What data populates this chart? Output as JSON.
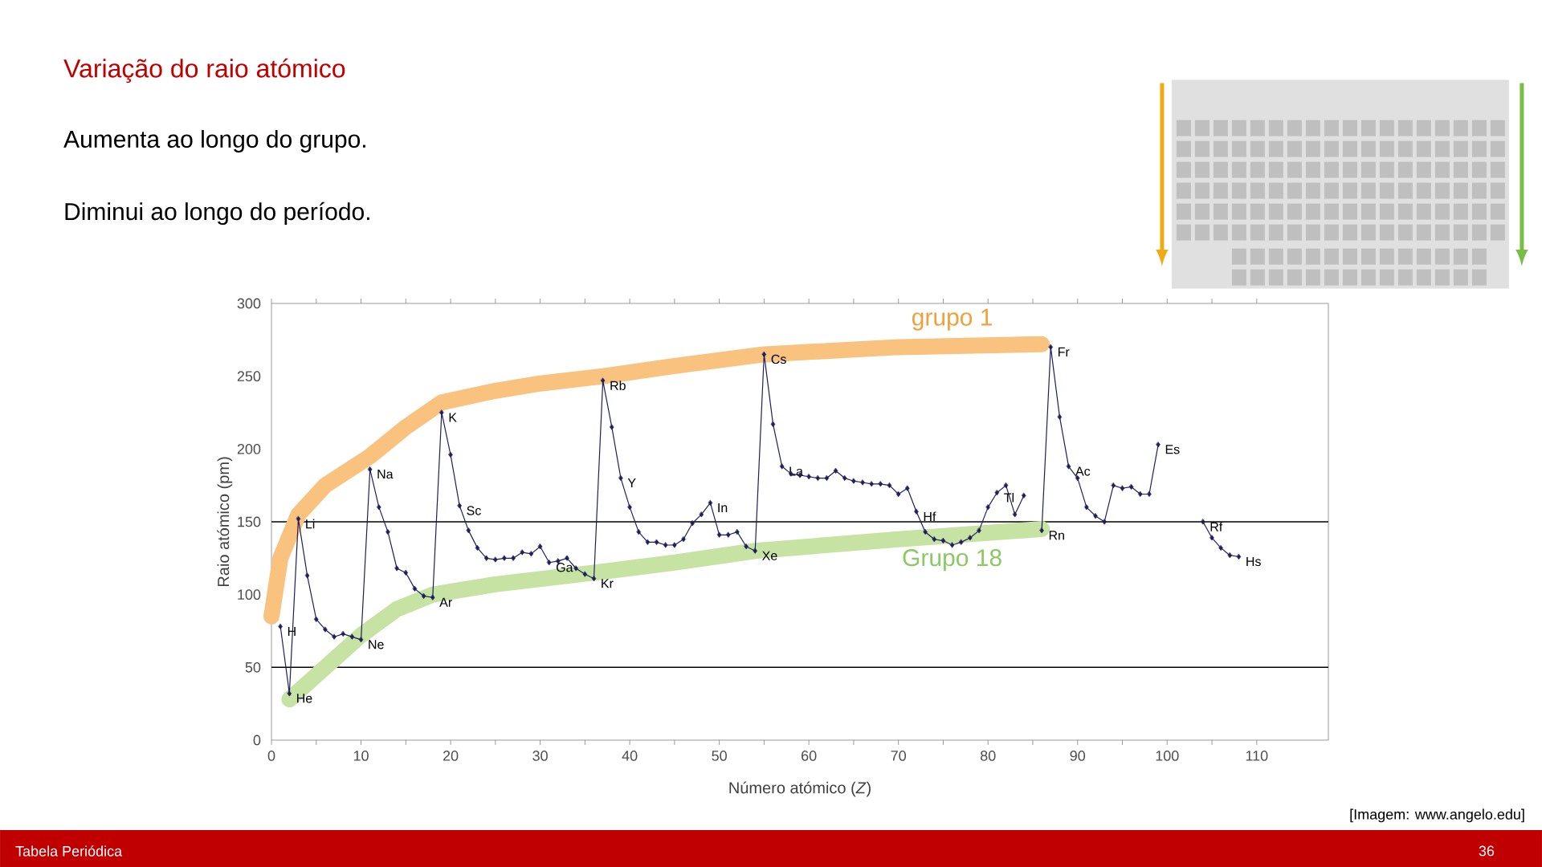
{
  "chart_data": {
    "type": "line",
    "title": "Variação do raio atómico",
    "xlabel": "Número atómico (*Z*)",
    "ylabel": "Raio atómico (pm)",
    "x": [
      1,
      2,
      3,
      4,
      5,
      6,
      7,
      8,
      9,
      10,
      11,
      12,
      13,
      14,
      15,
      16,
      17,
      18,
      19,
      20,
      21,
      22,
      23,
      24,
      25,
      26,
      27,
      28,
      29,
      30,
      31,
      32,
      33,
      34,
      35,
      36,
      37,
      38,
      39,
      40,
      41,
      42,
      43,
      44,
      45,
      46,
      47,
      48,
      49,
      50,
      51,
      52,
      53,
      54,
      55,
      56,
      57,
      58,
      59,
      60,
      61,
      62,
      63,
      64,
      65,
      66,
      67,
      68,
      69,
      70,
      71,
      72,
      73,
      74,
      75,
      76,
      77,
      78,
      79,
      80,
      81,
      82,
      83,
      84,
      85,
      86,
      87,
      88,
      89,
      90,
      91,
      92,
      93,
      94,
      95,
      96,
      97,
      98,
      99,
      100,
      101,
      102,
      103,
      104,
      105,
      106,
      107,
      108
    ],
    "series": [
      {
        "color": "#1f1f5c",
        "marker": "diamond",
        "values": [
          78,
          32,
          152,
          113,
          83,
          76,
          71,
          73,
          71,
          69,
          186,
          160,
          143,
          118,
          115,
          104,
          99,
          98,
          225,
          196,
          161,
          144,
          132,
          125,
          124,
          125,
          125,
          129,
          128,
          133,
          122,
          123,
          125,
          118,
          114,
          111,
          247,
          215,
          180,
          160,
          143,
          136,
          136,
          134,
          134,
          138,
          149,
          155,
          163,
          141,
          141,
          143,
          133,
          130,
          265,
          217,
          188,
          183,
          182,
          181,
          180,
          180,
          185,
          180,
          178,
          177,
          176,
          176,
          175,
          169,
          173,
          157,
          143,
          138,
          137,
          134,
          136,
          139,
          144,
          160,
          170,
          175,
          155,
          168,
          null,
          144,
          270,
          222,
          188,
          180,
          160,
          154,
          150,
          175,
          173,
          174,
          169,
          169,
          203,
          null,
          null,
          null,
          null,
          150,
          139,
          132,
          127,
          126
        ]
      },
      {
        "name": "grupo 1",
        "color": "#f9c27f",
        "marker": "none",
        "x": [
          0,
          1,
          3,
          6,
          11,
          15,
          19,
          25,
          30,
          37,
          45,
          55,
          70,
          86
        ],
        "values": [
          85,
          125,
          155,
          175,
          195,
          215,
          232,
          240,
          245,
          250,
          257,
          265,
          270,
          272
        ]
      },
      {
        "name": "Grupo 18",
        "color": "#c6e3a4",
        "marker": "none",
        "x": [
          2,
          6,
          10,
          14,
          18,
          25,
          36,
          45,
          54,
          70,
          86
        ],
        "values": [
          28,
          50,
          72,
          90,
          100,
          107,
          115,
          122,
          130,
          138,
          145
        ]
      }
    ],
    "xlim": [
      0,
      118
    ],
    "ylim": [
      0,
      300
    ],
    "xticks": [
      0,
      10,
      20,
      30,
      40,
      50,
      60,
      70,
      80,
      90,
      100,
      110
    ],
    "yticks": [
      0,
      50,
      100,
      150,
      200,
      250,
      300
    ],
    "ref_lines": [
      {
        "axis": "y",
        "value": 50
      },
      {
        "axis": "y",
        "value": 150
      }
    ],
    "annotations": [
      "Aumenta ao longo do grupo.",
      "Diminui ao longo do período.",
      "[Imagem: www.angelo.edu]",
      "Tabela Periódica",
      "36",
      {
        "text": "H",
        "x": 1,
        "y": 78
      },
      {
        "text": "He",
        "x": 2,
        "y": 32
      },
      {
        "text": "Li",
        "x": 3,
        "y": 152
      },
      {
        "text": "Ne",
        "x": 10,
        "y": 69
      },
      {
        "text": "Na",
        "x": 11,
        "y": 186
      },
      {
        "text": "Ar",
        "x": 18,
        "y": 98
      },
      {
        "text": "K",
        "x": 19,
        "y": 225
      },
      {
        "text": "Sc",
        "x": 21,
        "y": 161
      },
      {
        "text": "Ga",
        "x": 31,
        "y": 122
      },
      {
        "text": "Kr",
        "x": 36,
        "y": 111
      },
      {
        "text": "Rb",
        "x": 37,
        "y": 247
      },
      {
        "text": "Y",
        "x": 39,
        "y": 180
      },
      {
        "text": "In",
        "x": 49,
        "y": 163
      },
      {
        "text": "Xe",
        "x": 54,
        "y": 130
      },
      {
        "text": "Cs",
        "x": 55,
        "y": 265
      },
      {
        "text": "La",
        "x": 57,
        "y": 188
      },
      {
        "text": "Hf",
        "x": 72,
        "y": 157
      },
      {
        "text": "Tl",
        "x": 81,
        "y": 170
      },
      {
        "text": "Rn",
        "x": 86,
        "y": 144
      },
      {
        "text": "Fr",
        "x": 87,
        "y": 270
      },
      {
        "text": "Ac",
        "x": 89,
        "y": 188
      },
      {
        "text": "Es",
        "x": 99,
        "y": 203
      },
      {
        "text": "Rf",
        "x": 104,
        "y": 150
      },
      {
        "text": "Hs",
        "x": 108,
        "y": 126
      }
    ]
  }
}
